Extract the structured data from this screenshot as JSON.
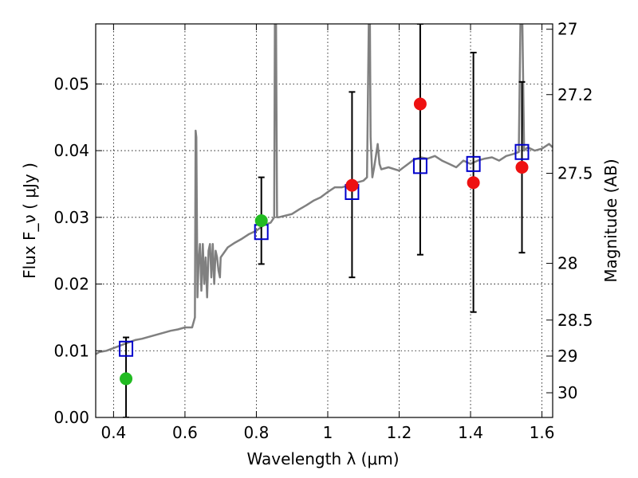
{
  "chart_data": {
    "type": "line",
    "xlabel": "Wavelength  λ (μm)",
    "ylabel": "Flux  F_ν  ( μJy )",
    "y2label": "Magnitude (AB)",
    "xlim": [
      0.35,
      1.63
    ],
    "ylim": [
      0.0,
      0.059
    ],
    "grid": true,
    "x_ticks": [
      0.4,
      0.6,
      0.8,
      1.0,
      1.2,
      1.4,
      1.6
    ],
    "x_tick_labels": [
      "0.4",
      "0.6",
      "0.8",
      "1",
      "1.2",
      "1.4",
      "1.6"
    ],
    "y_ticks": [
      0.0,
      0.01,
      0.02,
      0.03,
      0.04,
      0.05
    ],
    "y_tick_labels": [
      "0.00",
      "0.01",
      "0.02",
      "0.03",
      "0.04",
      "0.05"
    ],
    "y2_ticks": [
      {
        "label": "27",
        "flux": 0.0582
      },
      {
        "label": "27.2",
        "flux": 0.0484
      },
      {
        "label": "27.5",
        "flux": 0.0366
      },
      {
        "label": "28",
        "flux": 0.0231
      },
      {
        "label": "28.5",
        "flux": 0.0146
      },
      {
        "label": "29",
        "flux": 0.0092
      },
      {
        "label": "30",
        "flux": 0.0037
      }
    ],
    "colors": {
      "model": "#808080",
      "model_photometry": "#0000cc",
      "observed_a": "#22bb22",
      "observed_b": "#ee1111",
      "errorbar": "#000000"
    },
    "series": [
      {
        "kind": "model-spectrum",
        "x": [
          0.35,
          0.36,
          0.38,
          0.4,
          0.42,
          0.44,
          0.46,
          0.48,
          0.5,
          0.52,
          0.54,
          0.56,
          0.58,
          0.6,
          0.62,
          0.628,
          0.63,
          0.632,
          0.635,
          0.638,
          0.642,
          0.646,
          0.65,
          0.654,
          0.658,
          0.662,
          0.666,
          0.67,
          0.674,
          0.678,
          0.682,
          0.686,
          0.69,
          0.694,
          0.698,
          0.7,
          0.72,
          0.74,
          0.76,
          0.78,
          0.8,
          0.82,
          0.84,
          0.85,
          0.852,
          0.855,
          0.858,
          0.862,
          0.9,
          0.92,
          0.94,
          0.96,
          0.98,
          1.0,
          1.02,
          1.04,
          1.06,
          1.08,
          1.1,
          1.11,
          1.115,
          1.118,
          1.12,
          1.125,
          1.13,
          1.14,
          1.145,
          1.15,
          1.17,
          1.2,
          1.22,
          1.24,
          1.26,
          1.28,
          1.3,
          1.32,
          1.34,
          1.36,
          1.38,
          1.4,
          1.42,
          1.44,
          1.46,
          1.48,
          1.5,
          1.52,
          1.535,
          1.54,
          1.545,
          1.55,
          1.56,
          1.58,
          1.6,
          1.62,
          1.63
        ],
        "y": [
          0.0095,
          0.0098,
          0.01,
          0.0104,
          0.0108,
          0.0112,
          0.0116,
          0.0118,
          0.0121,
          0.0124,
          0.0127,
          0.013,
          0.0132,
          0.0135,
          0.0135,
          0.015,
          0.043,
          0.042,
          0.018,
          0.023,
          0.026,
          0.019,
          0.026,
          0.02,
          0.024,
          0.018,
          0.025,
          0.026,
          0.021,
          0.026,
          0.02,
          0.025,
          0.024,
          0.022,
          0.021,
          0.024,
          0.0255,
          0.0262,
          0.0268,
          0.0275,
          0.028,
          0.0288,
          0.0292,
          0.03,
          0.06,
          0.06,
          0.03,
          0.03,
          0.0305,
          0.0312,
          0.0318,
          0.0325,
          0.033,
          0.0338,
          0.0345,
          0.0345,
          0.0348,
          0.0352,
          0.0355,
          0.036,
          0.06,
          0.06,
          0.042,
          0.036,
          0.0375,
          0.041,
          0.038,
          0.0372,
          0.0375,
          0.037,
          0.0378,
          0.0386,
          0.039,
          0.0388,
          0.0392,
          0.0385,
          0.038,
          0.0375,
          0.0385,
          0.038,
          0.0385,
          0.0388,
          0.039,
          0.0385,
          0.0392,
          0.0395,
          0.0398,
          0.06,
          0.06,
          0.04,
          0.0405,
          0.04,
          0.0403,
          0.041,
          0.0405
        ]
      },
      {
        "kind": "model-photometry",
        "x": [
          0.435,
          0.814,
          1.068,
          1.259,
          1.408,
          1.544
        ],
        "y": [
          0.0103,
          0.0278,
          0.0338,
          0.0377,
          0.038,
          0.0398
        ]
      },
      {
        "kind": "observed-green",
        "x": [
          0.435,
          0.814
        ],
        "y": [
          0.0058,
          0.0295
        ],
        "err_low": [
          0.0058,
          0.0065
        ],
        "err_high": [
          0.0062,
          0.0065
        ]
      },
      {
        "kind": "observed-red",
        "x": [
          1.068,
          1.259,
          1.408,
          1.544
        ],
        "y": [
          0.0348,
          0.047,
          0.0352,
          0.0375
        ],
        "err_low": [
          0.0138,
          0.0226,
          0.0194,
          0.0128
        ],
        "err_high": [
          0.014,
          0.012,
          0.0195,
          0.0128
        ]
      }
    ]
  }
}
